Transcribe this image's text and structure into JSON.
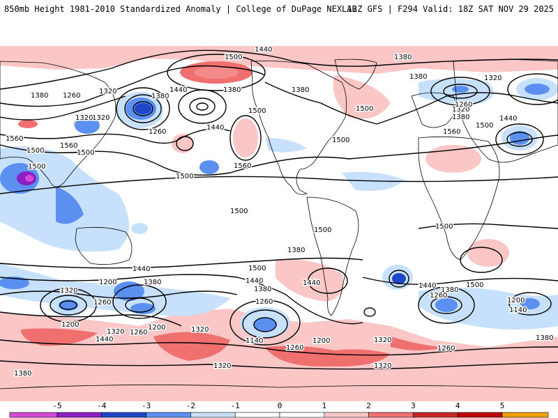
{
  "header": {
    "title_left": "850mb Height 1981-2010 Standardized Anomaly | College of DuPage NEXLAB",
    "title_right": "12Z GFS | F294 Valid: 18Z SAT NOV 29 2025"
  },
  "colors": {
    "ocean": "#ffffff",
    "land_outline": "#000000",
    "contour": "#000000",
    "anom_neg1": "#c7e0fb",
    "anom_neg2": "#5b8ff0",
    "anom_neg3": "#1e46c8",
    "anom_neg4": "#8a1fc4",
    "anom_neg5": "#d54bd8",
    "anom_pos1": "#fbc6c6",
    "anom_pos2": "#f07070",
    "anom_pos3": "#c62626",
    "anom_pos4": "#c00000",
    "anom_pos5": "#f0a000"
  },
  "contour_labels": [
    {
      "text": "1440"
    },
    {
      "text": "1500"
    },
    {
      "text": "1380"
    },
    {
      "text": "1380"
    },
    {
      "text": "1260"
    },
    {
      "text": "1320"
    },
    {
      "text": "1380"
    },
    {
      "text": "1440"
    },
    {
      "text": "1380"
    },
    {
      "text": "1320"
    },
    {
      "text": "1500"
    },
    {
      "text": "1440"
    },
    {
      "text": "1500"
    },
    {
      "text": "1380"
    },
    {
      "text": "1380"
    },
    {
      "text": "1320"
    },
    {
      "text": "1320"
    },
    {
      "text": "1260"
    },
    {
      "text": "1380"
    },
    {
      "text": "1440"
    },
    {
      "text": "1500"
    },
    {
      "text": "1560"
    },
    {
      "text": "1560"
    },
    {
      "text": "1500"
    },
    {
      "text": "1320"
    },
    {
      "text": "1260"
    },
    {
      "text": "1500"
    },
    {
      "text": "1560"
    },
    {
      "text": "1500"
    },
    {
      "text": "1500"
    },
    {
      "text": "1500"
    },
    {
      "text": "1560"
    },
    {
      "text": "1500"
    },
    {
      "text": "1500"
    },
    {
      "text": "1500"
    },
    {
      "text": "1440"
    },
    {
      "text": "1380"
    },
    {
      "text": "1440"
    },
    {
      "text": "1380"
    },
    {
      "text": "1500"
    },
    {
      "text": "1380"
    },
    {
      "text": "1320"
    },
    {
      "text": "1260"
    },
    {
      "text": "1200"
    },
    {
      "text": "1260"
    },
    {
      "text": "1200"
    },
    {
      "text": "1320"
    },
    {
      "text": "1260"
    },
    {
      "text": "1140"
    },
    {
      "text": "1200"
    },
    {
      "text": "1260"
    },
    {
      "text": "1320"
    },
    {
      "text": "1320"
    },
    {
      "text": "1440"
    },
    {
      "text": "1380"
    },
    {
      "text": "1260"
    },
    {
      "text": "1200"
    },
    {
      "text": "1140"
    },
    {
      "text": "1380"
    },
    {
      "text": "1320"
    },
    {
      "text": "1380"
    },
    {
      "text": "1440"
    },
    {
      "text": "1500"
    },
    {
      "text": "1260"
    },
    {
      "text": "1200"
    },
    {
      "text": "1320"
    },
    {
      "text": "1440"
    }
  ],
  "colorbar": {
    "ticks": [
      "-5",
      "-4",
      "-3",
      "-2",
      "-1",
      "0",
      "1",
      "2",
      "3",
      "4",
      "5"
    ]
  }
}
